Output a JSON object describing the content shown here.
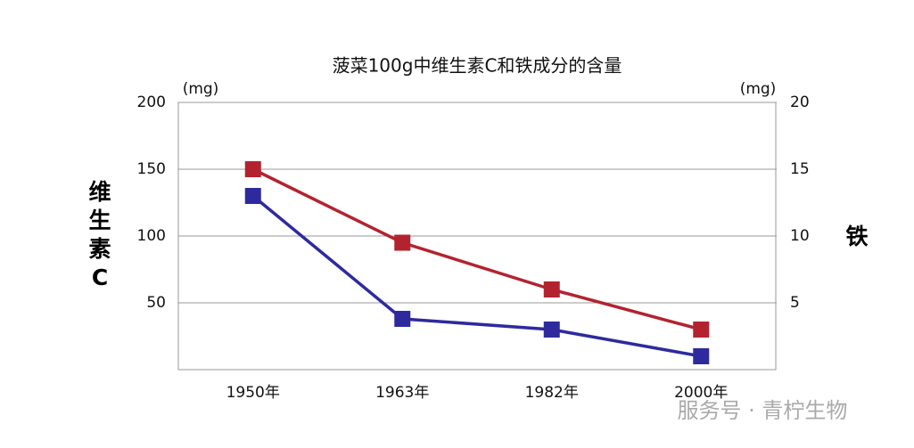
{
  "chart_data": {
    "type": "line",
    "title": "菠菜100g中维生素C和铁成分的含量",
    "ylabel": "维生素C",
    "y2label": "铁",
    "yunit": "(mg)",
    "y2unit": "(mg)",
    "categories": [
      "1950年",
      "1963年",
      "1982年",
      "2000年"
    ],
    "series": [
      {
        "color": "#2e2a9e",
        "values": [
          130,
          38,
          30,
          10
        ]
      },
      {
        "color": "#b3232f",
        "axis": "y2",
        "values": [
          15,
          9.5,
          6,
          3
        ]
      }
    ],
    "ylim": [
      0,
      200
    ],
    "yticks": [
      50,
      100,
      150,
      200
    ],
    "y2lim": [
      0,
      20
    ],
    "y2ticks": [
      5,
      10,
      15,
      20
    ],
    "grid": true,
    "watermark": "服务号 · 青柠生物"
  }
}
